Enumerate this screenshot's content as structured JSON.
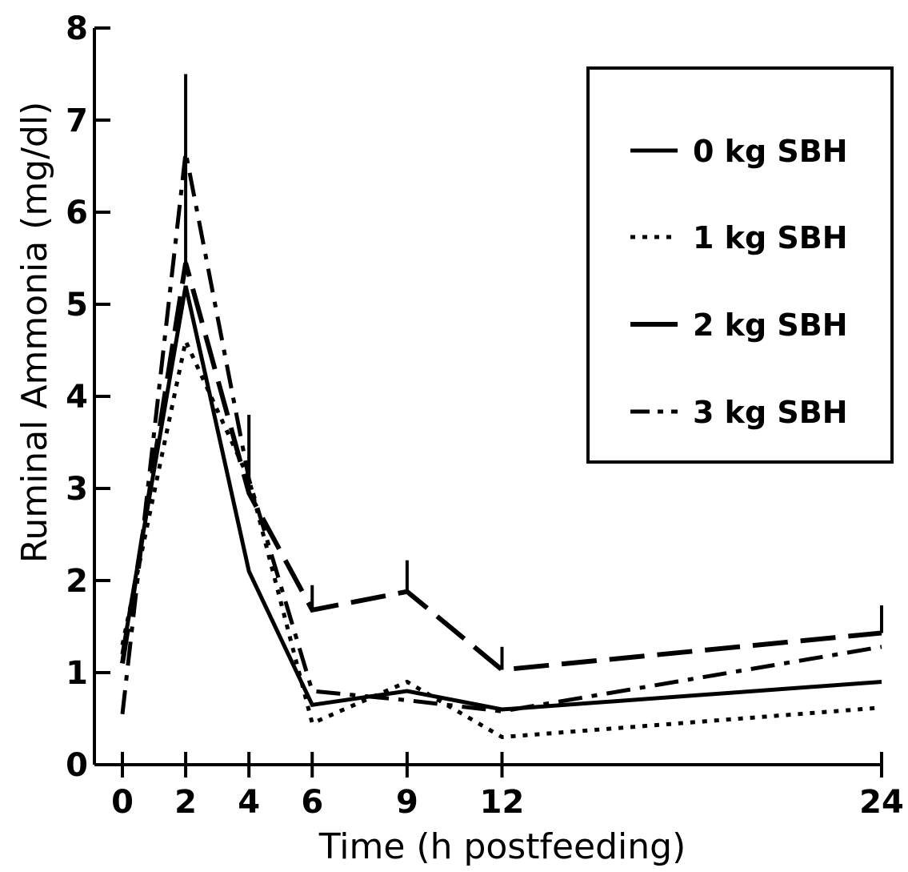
{
  "chart_data": {
    "type": "line",
    "xlabel": "Time (h postfeeding)",
    "ylabel": "Ruminal Ammonia (mg/dl)",
    "x": [
      0,
      2,
      4,
      6,
      9,
      12,
      24
    ],
    "x_tick_labels": [
      "0",
      "2",
      "4",
      "6",
      "9",
      "12",
      "24"
    ],
    "y_ticks": [
      0,
      1,
      2,
      3,
      4,
      5,
      6,
      7,
      8
    ],
    "y_tick_labels": [
      "0",
      "1",
      "2",
      "3",
      "4",
      "5",
      "6",
      "7",
      "8"
    ],
    "ylim": [
      0,
      8
    ],
    "grid": false,
    "legend": "top-right",
    "series": [
      {
        "name": "0 kg SBH",
        "style": "solid",
        "values": [
          1.2,
          5.2,
          2.1,
          0.65,
          0.8,
          0.6,
          0.9
        ]
      },
      {
        "name": "1 kg SBH",
        "style": "dotted",
        "values": [
          1.3,
          4.6,
          3.1,
          0.45,
          0.9,
          0.3,
          0.62
        ]
      },
      {
        "name": "2 kg SBH",
        "style": "dashed",
        "values": [
          1.1,
          5.45,
          2.95,
          1.68,
          1.88,
          1.03,
          1.43
        ]
      },
      {
        "name": "3 kg SBH",
        "style": "dashdot",
        "values": [
          0.55,
          6.65,
          3.1,
          0.8,
          0.7,
          0.58,
          1.28
        ]
      }
    ],
    "error_bars": [
      {
        "series": "2 kg SBH",
        "x": 2,
        "top": 7.5
      },
      {
        "series": "2 kg SBH",
        "x": 4,
        "top": 3.8
      },
      {
        "series": "2 kg SBH",
        "x": 6,
        "top": 1.95
      },
      {
        "series": "2 kg SBH",
        "x": 9,
        "top": 2.22
      },
      {
        "series": "2 kg SBH",
        "x": 12,
        "top": 1.28
      },
      {
        "series": "2 kg SBH",
        "x": 24,
        "top": 1.73
      }
    ],
    "colors": {
      "line": "#000000",
      "background": "#ffffff"
    }
  }
}
